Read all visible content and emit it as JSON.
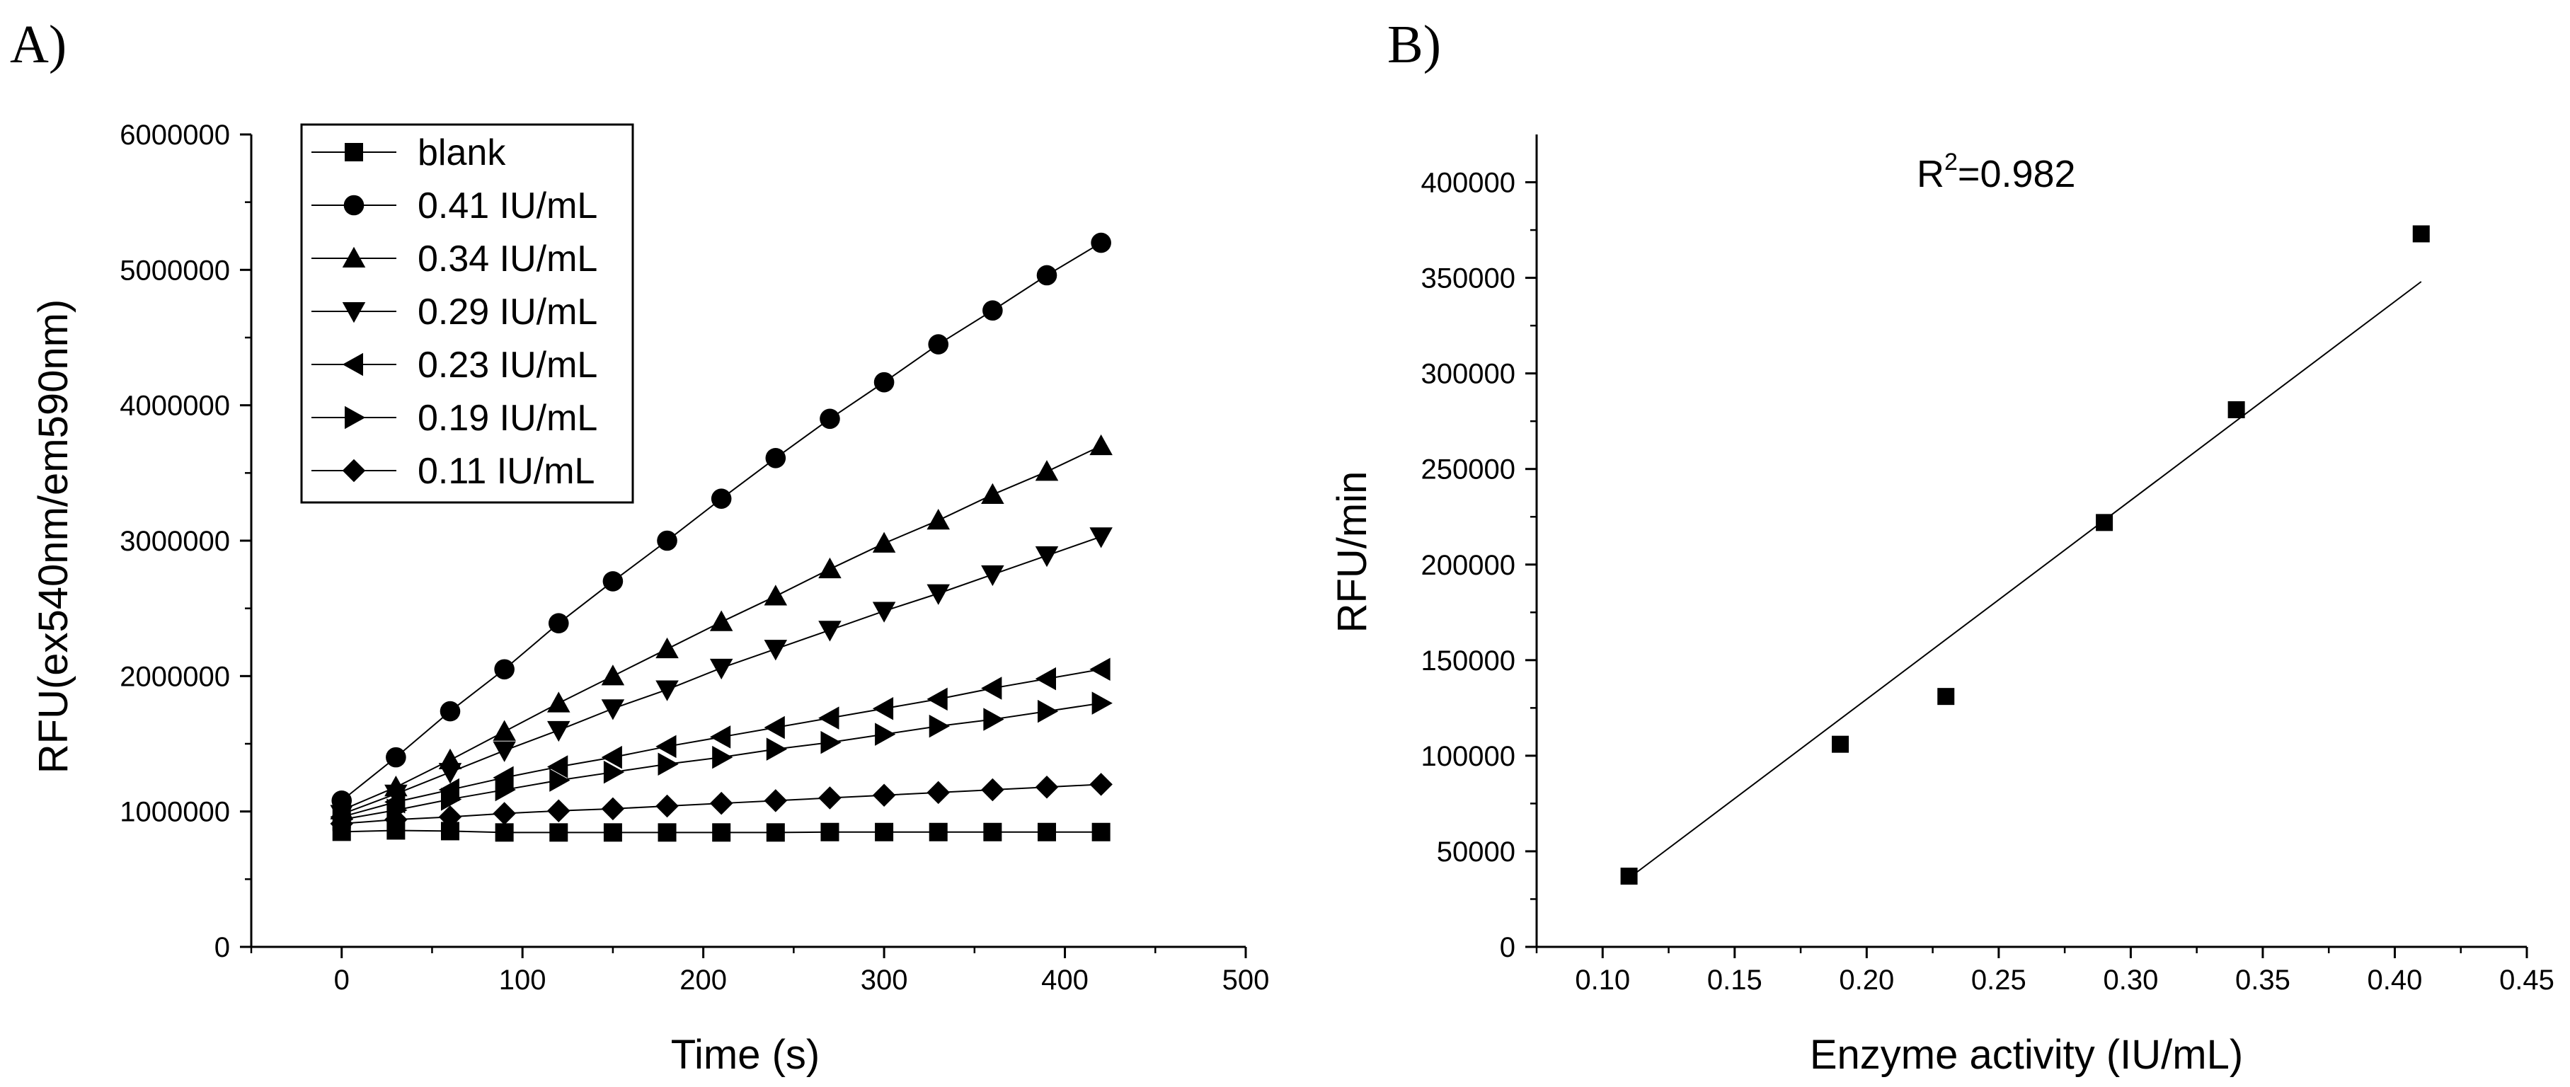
{
  "chart_data": [
    {
      "type": "line",
      "panel_label": "A)",
      "xlabel": "Time (s)",
      "ylabel": "RFU(ex540nm/em590nm)",
      "xlim": [
        -50,
        500
      ],
      "ylim": [
        0,
        6000000
      ],
      "xticks": [
        0,
        100,
        200,
        300,
        400,
        500
      ],
      "xtick_labels": [
        "0",
        "100",
        "200",
        "300",
        "400",
        "500"
      ],
      "yticks": [
        0,
        1000000,
        2000000,
        3000000,
        4000000,
        5000000,
        6000000
      ],
      "ytick_labels": [
        "0",
        "1000000",
        "2000000",
        "3000000",
        "4000000",
        "5000000",
        "6000000"
      ],
      "legend_position": "top-left",
      "x": [
        0,
        30,
        60,
        90,
        120,
        150,
        180,
        210,
        240,
        270,
        300,
        330,
        360,
        390,
        420
      ],
      "series": [
        {
          "name": "blank",
          "marker": "square",
          "values": [
            850000,
            860000,
            855000,
            845000,
            845000,
            845000,
            845000,
            845000,
            845000,
            848000,
            848000,
            848000,
            848000,
            848000,
            848000
          ]
        },
        {
          "name": "0.41 IU/mL",
          "marker": "circle",
          "values": [
            1080000,
            1400000,
            1740000,
            2050000,
            2390000,
            2700000,
            3000000,
            3310000,
            3610000,
            3900000,
            4170000,
            4450000,
            4700000,
            4960000,
            5200000
          ]
        },
        {
          "name": "0.34 IU/mL",
          "marker": "triangle-up",
          "values": [
            1010000,
            1180000,
            1380000,
            1590000,
            1800000,
            2000000,
            2200000,
            2400000,
            2590000,
            2790000,
            2980000,
            3150000,
            3340000,
            3510000,
            3700000
          ]
        },
        {
          "name": "0.29 IU/mL",
          "marker": "triangle-down",
          "values": [
            980000,
            1130000,
            1290000,
            1450000,
            1600000,
            1760000,
            1900000,
            2060000,
            2200000,
            2340000,
            2480000,
            2610000,
            2750000,
            2890000,
            3030000
          ]
        },
        {
          "name": "0.23 IU/mL",
          "marker": "triangle-left",
          "values": [
            960000,
            1070000,
            1160000,
            1250000,
            1330000,
            1400000,
            1480000,
            1550000,
            1620000,
            1690000,
            1760000,
            1830000,
            1910000,
            1980000,
            2050000
          ]
        },
        {
          "name": "0.19 IU/mL",
          "marker": "triangle-right",
          "values": [
            940000,
            1010000,
            1090000,
            1160000,
            1230000,
            1290000,
            1350000,
            1400000,
            1460000,
            1510000,
            1570000,
            1630000,
            1680000,
            1740000,
            1800000
          ]
        },
        {
          "name": "0.11 IU/mL",
          "marker": "diamond",
          "values": [
            910000,
            940000,
            960000,
            985000,
            1005000,
            1020000,
            1040000,
            1060000,
            1080000,
            1100000,
            1120000,
            1140000,
            1160000,
            1180000,
            1200000
          ]
        }
      ]
    },
    {
      "type": "scatter",
      "panel_label": "B)",
      "xlabel": "Enzyme activity (IU/mL)",
      "ylabel": "RFU/min",
      "xlim": [
        0.075,
        0.45
      ],
      "ylim": [
        0,
        425000
      ],
      "xticks": [
        0.1,
        0.15,
        0.2,
        0.25,
        0.3,
        0.35,
        0.4,
        0.45
      ],
      "xtick_labels": [
        "0.10",
        "0.15",
        "0.20",
        "0.25",
        "0.30",
        "0.35",
        "0.40",
        "0.45"
      ],
      "yticks": [
        0,
        50000,
        100000,
        150000,
        200000,
        250000,
        300000,
        350000,
        400000
      ],
      "ytick_labels": [
        "0",
        "50000",
        "100000",
        "150000",
        "200000",
        "250000",
        "300000",
        "350000",
        "400000"
      ],
      "points": {
        "x": [
          0.11,
          0.19,
          0.23,
          0.29,
          0.34,
          0.41
        ],
        "y": [
          37000,
          106000,
          131000,
          222000,
          281000,
          373000
        ]
      },
      "fit_line": {
        "x": [
          0.11,
          0.41
        ],
        "y": [
          36000,
          348000
        ]
      },
      "annotation": {
        "prefix": "R",
        "superscript": "2",
        "suffix": "=0.982"
      }
    }
  ]
}
